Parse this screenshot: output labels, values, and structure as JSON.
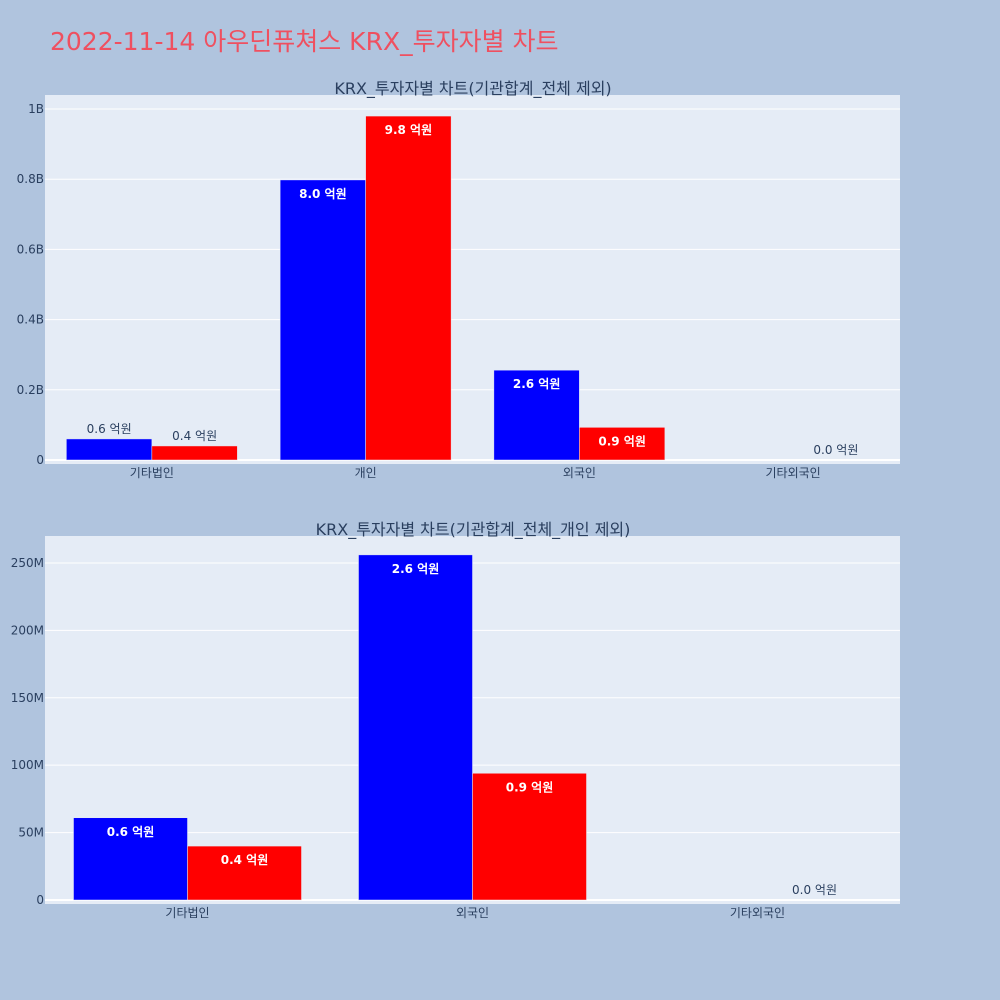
{
  "page": {
    "title": "2022-11-14 아우딘퓨쳐스 KRX_투자자별 차트",
    "background": "#B0C4DE",
    "title_color": "#EF5060",
    "plot_background": "#E5ECF6",
    "text_color": "#2A3F5F"
  },
  "chart_data": [
    {
      "type": "bar",
      "title": "KRX_투자자별 차트(기관합계_전체 제외)",
      "categories": [
        "기타법인",
        "개인",
        "외국인",
        "기타외국인"
      ],
      "series": [
        {
          "color": "#0000FF",
          "values": [
            60000000,
            798000000,
            256000000,
            0
          ],
          "labels": [
            "0.6 억원",
            "8.0 억원",
            "2.6 억원",
            ""
          ]
        },
        {
          "color": "#FF0000",
          "values": [
            40000000,
            980000000,
            93000000,
            0
          ],
          "labels": [
            "0.4 억원",
            "9.8 억원",
            "0.9 억원",
            "0.0 억원"
          ]
        }
      ],
      "yticks": [
        0,
        200000000,
        400000000,
        600000000,
        800000000,
        1000000000
      ],
      "yticklabels": [
        "0",
        "0.2B",
        "0.4B",
        "0.6B",
        "0.8B",
        "1B"
      ],
      "ylim": [
        0,
        1040000000
      ],
      "grid": true
    },
    {
      "type": "bar",
      "title": "KRX_투자자별 차트(기관합계_전체_개인 제외)",
      "categories": [
        "기타법인",
        "외국인",
        "기타외국인"
      ],
      "series": [
        {
          "color": "#0000FF",
          "values": [
            61000000,
            256000000,
            0
          ],
          "labels": [
            "0.6 억원",
            "2.6 억원",
            ""
          ]
        },
        {
          "color": "#FF0000",
          "values": [
            40000000,
            94000000,
            0
          ],
          "labels": [
            "0.4 억원",
            "0.9 억원",
            "0.0 억원"
          ]
        }
      ],
      "yticks": [
        0,
        50000000,
        100000000,
        150000000,
        200000000,
        250000000
      ],
      "yticklabels": [
        "0",
        "50M",
        "100M",
        "150M",
        "200M",
        "250M"
      ],
      "ylim": [
        0,
        270000000
      ],
      "grid": true
    }
  ]
}
